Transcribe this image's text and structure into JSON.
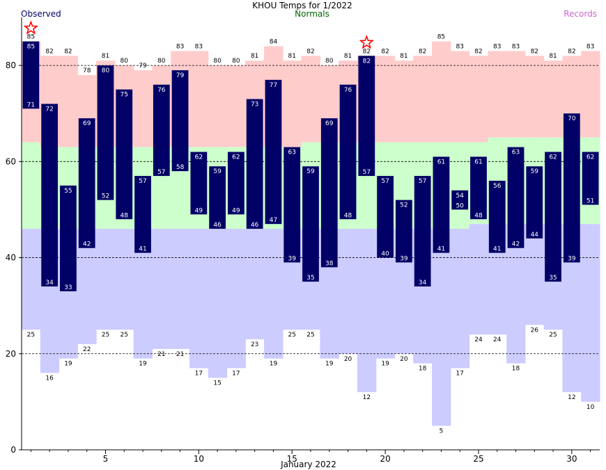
{
  "chart_data": {
    "type": "bar",
    "title": "KHOU Temps for 1/2022",
    "xlabel": "January 2022",
    "ylabel": "",
    "ylim": [
      0,
      90
    ],
    "xlim": [
      0.5,
      31.5
    ],
    "grid": "dashed horizontal",
    "yticks": [
      0,
      20,
      40,
      60,
      80
    ],
    "xticks": [
      5,
      10,
      15,
      20,
      25,
      30
    ],
    "legend": [
      {
        "label": "Observed",
        "color": "#000066",
        "position": "top-left"
      },
      {
        "label": "Normals",
        "color": "#006600",
        "position": "top-center"
      },
      {
        "label": "Records",
        "color": "#cc66cc",
        "position": "top-right"
      }
    ],
    "colors": {
      "observed": "#000066",
      "normals": "#ccffcc",
      "record_high_band": "#ffcccc",
      "record_low_band": "#ccccff",
      "record_marker": "#ff0000",
      "grid": "#000000"
    },
    "days": [
      1,
      2,
      3,
      4,
      5,
      6,
      7,
      8,
      9,
      10,
      11,
      12,
      13,
      14,
      15,
      16,
      17,
      18,
      19,
      20,
      21,
      22,
      23,
      24,
      25,
      26,
      27,
      28,
      29,
      30,
      31
    ],
    "observed_high": [
      85,
      72,
      55,
      69,
      80,
      75,
      57,
      76,
      79,
      62,
      59,
      62,
      73,
      77,
      63,
      59,
      69,
      76,
      82,
      57,
      52,
      57,
      61,
      54,
      61,
      56,
      63,
      59,
      62,
      70,
      62
    ],
    "observed_low": [
      71,
      34,
      33,
      42,
      52,
      48,
      41,
      57,
      58,
      49,
      46,
      49,
      46,
      47,
      39,
      35,
      38,
      48,
      57,
      40,
      39,
      34,
      41,
      50,
      48,
      41,
      42,
      44,
      35,
      39,
      51
    ],
    "normal_high": [
      64,
      63,
      63,
      63,
      63,
      63,
      63,
      63,
      63,
      63,
      63,
      63,
      63,
      63,
      63,
      64,
      64,
      64,
      64,
      64,
      64,
      64,
      64,
      64,
      64,
      65,
      65,
      65,
      65,
      65,
      65
    ],
    "normal_low": [
      46,
      46,
      46,
      46,
      46,
      46,
      46,
      46,
      46,
      46,
      46,
      46,
      46,
      46,
      46,
      46,
      46,
      46,
      46,
      46,
      46,
      46,
      46,
      46,
      47,
      47,
      47,
      47,
      47,
      47,
      47
    ],
    "record_high": [
      85,
      82,
      82,
      78,
      81,
      80,
      79,
      80,
      83,
      83,
      80,
      80,
      81,
      84,
      81,
      82,
      80,
      81,
      82,
      82,
      81,
      82,
      85,
      83,
      82,
      83,
      83,
      82,
      81,
      82,
      83
    ],
    "record_low": [
      25,
      16,
      19,
      22,
      25,
      25,
      19,
      21,
      21,
      17,
      15,
      17,
      23,
      19,
      25,
      25,
      19,
      20,
      12,
      19,
      20,
      18,
      5,
      17,
      24,
      24,
      18,
      26,
      25,
      12,
      10
    ],
    "record_set_days": [
      1,
      19
    ]
  }
}
